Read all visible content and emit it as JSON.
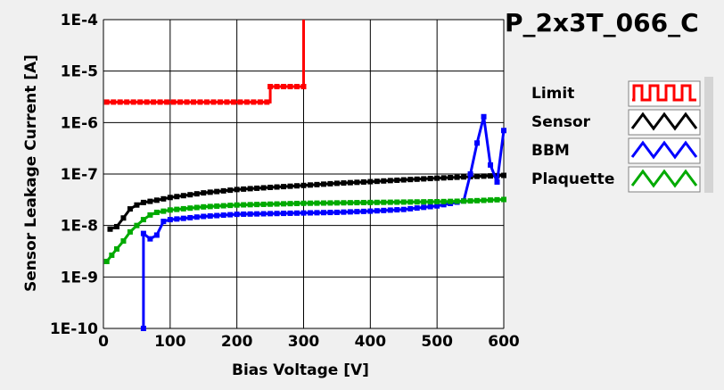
{
  "chart_data": {
    "type": "line",
    "title": "P_2x3T_066_C",
    "xlabel": "Bias Voltage [V]",
    "ylabel": "Sensor Leakage Current [A]",
    "xlim": [
      0,
      600
    ],
    "ylim": [
      1e-10,
      0.0001
    ],
    "yscale": "log",
    "grid": true,
    "legend": "right",
    "x_ticks": [
      "0",
      "100",
      "200",
      "300",
      "400",
      "500",
      "600"
    ],
    "x_tick_values": [
      0,
      100,
      200,
      300,
      400,
      500,
      600
    ],
    "y_ticks": [
      "1E-10",
      "1E-9",
      "1E-8",
      "1E-7",
      "1E-6",
      "1E-5",
      "1E-4"
    ],
    "y_tick_values": [
      1e-10,
      1e-09,
      1e-08,
      1e-07,
      1e-06,
      1e-05,
      0.0001
    ],
    "series": [
      {
        "name": "Limit",
        "color": "#ff0000",
        "step": true,
        "points": [
          [
            5,
            2.5e-06
          ],
          [
            250,
            2.5e-06
          ],
          [
            250,
            5e-06
          ],
          [
            300,
            5e-06
          ],
          [
            300,
            0.0001
          ]
        ]
      },
      {
        "name": "Sensor",
        "color": "#000000",
        "step": false,
        "points": [
          [
            10,
            8.5e-09
          ],
          [
            20,
            9.5e-09
          ],
          [
            30,
            1.4e-08
          ],
          [
            40,
            2.1e-08
          ],
          [
            50,
            2.5e-08
          ],
          [
            60,
            2.8e-08
          ],
          [
            80,
            3.1e-08
          ],
          [
            100,
            3.5e-08
          ],
          [
            150,
            4.3e-08
          ],
          [
            200,
            5e-08
          ],
          [
            250,
            5.5e-08
          ],
          [
            300,
            6e-08
          ],
          [
            350,
            6.6e-08
          ],
          [
            400,
            7.1e-08
          ],
          [
            450,
            7.7e-08
          ],
          [
            500,
            8.3e-08
          ],
          [
            550,
            8.9e-08
          ],
          [
            600,
            9.4e-08
          ]
        ]
      },
      {
        "name": "BBM",
        "color": "#0000ff",
        "step": false,
        "points": [
          [
            60,
            1e-10
          ],
          [
            60,
            7e-09
          ],
          [
            70,
            5.5e-09
          ],
          [
            80,
            6.5e-09
          ],
          [
            90,
            1.2e-08
          ],
          [
            100,
            1.3e-08
          ],
          [
            150,
            1.5e-08
          ],
          [
            200,
            1.65e-08
          ],
          [
            250,
            1.7e-08
          ],
          [
            300,
            1.75e-08
          ],
          [
            350,
            1.8e-08
          ],
          [
            400,
            1.9e-08
          ],
          [
            450,
            2.05e-08
          ],
          [
            500,
            2.4e-08
          ],
          [
            540,
            3e-08
          ],
          [
            550,
            1e-07
          ],
          [
            560,
            4e-07
          ],
          [
            570,
            1.3e-06
          ],
          [
            580,
            1.5e-07
          ],
          [
            590,
            7e-08
          ],
          [
            600,
            7e-07
          ]
        ]
      },
      {
        "name": "Plaquette",
        "color": "#00aa00",
        "step": false,
        "points": [
          [
            5,
            2e-09
          ],
          [
            20,
            3.5e-09
          ],
          [
            30,
            5e-09
          ],
          [
            40,
            7.5e-09
          ],
          [
            50,
            1e-08
          ],
          [
            60,
            1.3e-08
          ],
          [
            70,
            1.6e-08
          ],
          [
            80,
            1.8e-08
          ],
          [
            100,
            2e-08
          ],
          [
            150,
            2.3e-08
          ],
          [
            200,
            2.5e-08
          ],
          [
            250,
            2.6e-08
          ],
          [
            300,
            2.7e-08
          ],
          [
            350,
            2.75e-08
          ],
          [
            400,
            2.8e-08
          ],
          [
            450,
            2.85e-08
          ],
          [
            500,
            2.9e-08
          ],
          [
            550,
            3e-08
          ],
          [
            600,
            3.2e-08
          ]
        ]
      }
    ]
  }
}
